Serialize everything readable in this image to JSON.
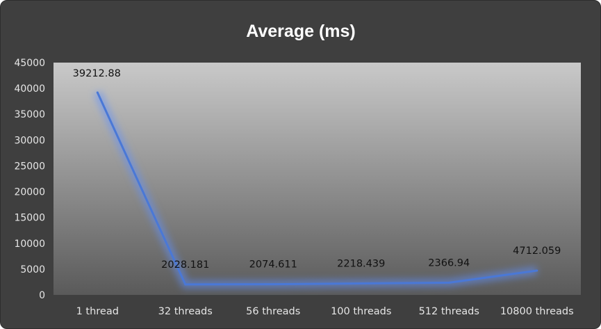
{
  "chart_data": {
    "type": "line",
    "title": "Average  (ms)",
    "categories": [
      "1 thread",
      "32 threads",
      "56 threads",
      "100 threads",
      "512 threads",
      "10800 threads"
    ],
    "series": [
      {
        "values": [
          39212.88,
          2028.181,
          2074.611,
          2218.439,
          2366.94,
          4712.059
        ]
      }
    ],
    "data_labels": [
      "39212.88",
      "2028.181",
      "2074.611",
      "2218.439",
      "2366.94",
      "4712.059"
    ],
    "y_ticks": [
      "0",
      "5000",
      "10000",
      "15000",
      "20000",
      "25000",
      "30000",
      "35000",
      "40000",
      "45000"
    ],
    "ylim": [
      0,
      45000
    ],
    "xlabel": "",
    "ylabel": "",
    "grid": false,
    "legend": "none",
    "colors": {
      "background": "#3f3f3f",
      "plot_top": "#c9c9c9",
      "plot_bottom": "#5a5a5a",
      "line": "#4a78d6",
      "glow": "#5f8fff",
      "title": "#ffffff",
      "tick": "#e6e6e6",
      "data_label": "#111111"
    }
  }
}
